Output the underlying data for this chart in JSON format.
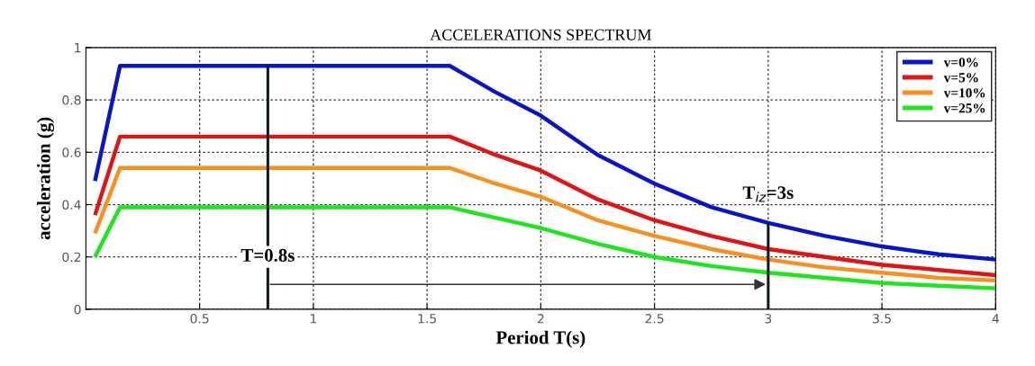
{
  "chart_data": {
    "type": "line",
    "title": "ACCELERATIONS SPECTRUM",
    "xlabel": "Period T(s)",
    "ylabel": "acceleration (g)",
    "x": [
      0.04,
      0.15,
      0.8,
      1.6,
      1.8,
      2.0,
      2.25,
      2.5,
      2.75,
      3.0,
      3.25,
      3.5,
      3.75,
      4.0
    ],
    "series": [
      {
        "name": "v=0%",
        "color": "#0a14c8",
        "values": [
          0.49,
          0.93,
          0.93,
          0.93,
          0.83,
          0.74,
          0.59,
          0.48,
          0.39,
          0.33,
          0.28,
          0.24,
          0.21,
          0.19
        ]
      },
      {
        "name": "v=5%",
        "color": "#e01414",
        "values": [
          0.36,
          0.66,
          0.66,
          0.66,
          0.59,
          0.53,
          0.42,
          0.34,
          0.28,
          0.23,
          0.2,
          0.17,
          0.15,
          0.13
        ]
      },
      {
        "name": "v=10%",
        "color": "#f7901e",
        "values": [
          0.29,
          0.54,
          0.54,
          0.54,
          0.48,
          0.43,
          0.34,
          0.28,
          0.23,
          0.19,
          0.16,
          0.14,
          0.12,
          0.11
        ]
      },
      {
        "name": "v=25%",
        "color": "#1ee61e",
        "values": [
          0.2,
          0.39,
          0.39,
          0.39,
          0.35,
          0.31,
          0.25,
          0.2,
          0.165,
          0.14,
          0.12,
          0.1,
          0.09,
          0.08
        ]
      },
      {
        "type": "bar",
        "color": "#0d1a1a",
        "x": [
          0.8
        ],
        "values": [
          0.93
        ]
      },
      {
        "type": "bar",
        "color": "#0d1a1a",
        "x": [
          3
        ],
        "values": [
          0.33
        ]
      }
    ],
    "xlim": [
      0,
      4
    ],
    "xticks": [
      0.5,
      1,
      1.5,
      2,
      2.5,
      3,
      3.5,
      4
    ],
    "ylim": [
      0,
      1
    ],
    "yticks": [
      0,
      0.2,
      0.4,
      0.6,
      0.8,
      1
    ],
    "grid": true,
    "legend": "top right",
    "line_style": "solid",
    "marker": "none",
    "annotations": [
      "T=0.8s",
      "T$_{iz}$=3s"
    ]
  }
}
